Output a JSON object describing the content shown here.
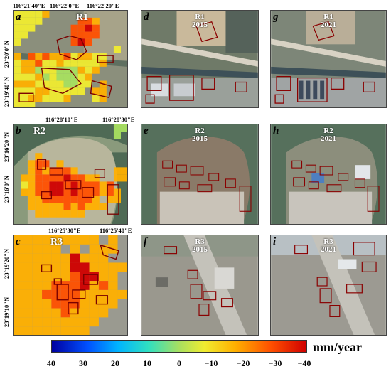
{
  "panels": {
    "a": {
      "letter": "a",
      "region": "R1"
    },
    "b": {
      "letter": "b",
      "region": "R2"
    },
    "c": {
      "letter": "c",
      "region": "R3"
    },
    "d": {
      "letter": "d",
      "region": "R1",
      "year": "2015"
    },
    "e": {
      "letter": "e",
      "region": "R2",
      "year": "2015"
    },
    "f": {
      "letter": "f",
      "region": "R3",
      "year": "2015"
    },
    "g": {
      "letter": "g",
      "region": "R1",
      "year": "2021"
    },
    "h": {
      "letter": "h",
      "region": "R2",
      "year": "2021"
    },
    "i": {
      "letter": "i",
      "region": "R3",
      "year": "2021"
    }
  },
  "coords": {
    "r1_lon": [
      "116°21'40\"E",
      "116°22'0\"E",
      "116°22'20\"E"
    ],
    "r1_lat": [
      "23°20'0\"N",
      "23°19'40\"N"
    ],
    "r2_lon": [
      "116°28'10\"E",
      "116°28'30\"E"
    ],
    "r2_lat": [
      "23°16'20\"N",
      "23°16'0\"N"
    ],
    "r3_lon": [
      "116°25'30\"E",
      "116°25'40\"E"
    ],
    "r3_lat": [
      "23°19'20\"N",
      "23°19'10\"N"
    ]
  },
  "colorbar": {
    "ticks": [
      "40",
      "30",
      "20",
      "10",
      "0",
      "−10",
      "−20",
      "−30",
      "−40"
    ],
    "unit": "mm/year",
    "colors": [
      "#0000a0",
      "#0050ff",
      "#00b4ff",
      "#30e0c0",
      "#a8e060",
      "#f0ec30",
      "#ffb000",
      "#ff5000",
      "#d00000"
    ]
  }
}
